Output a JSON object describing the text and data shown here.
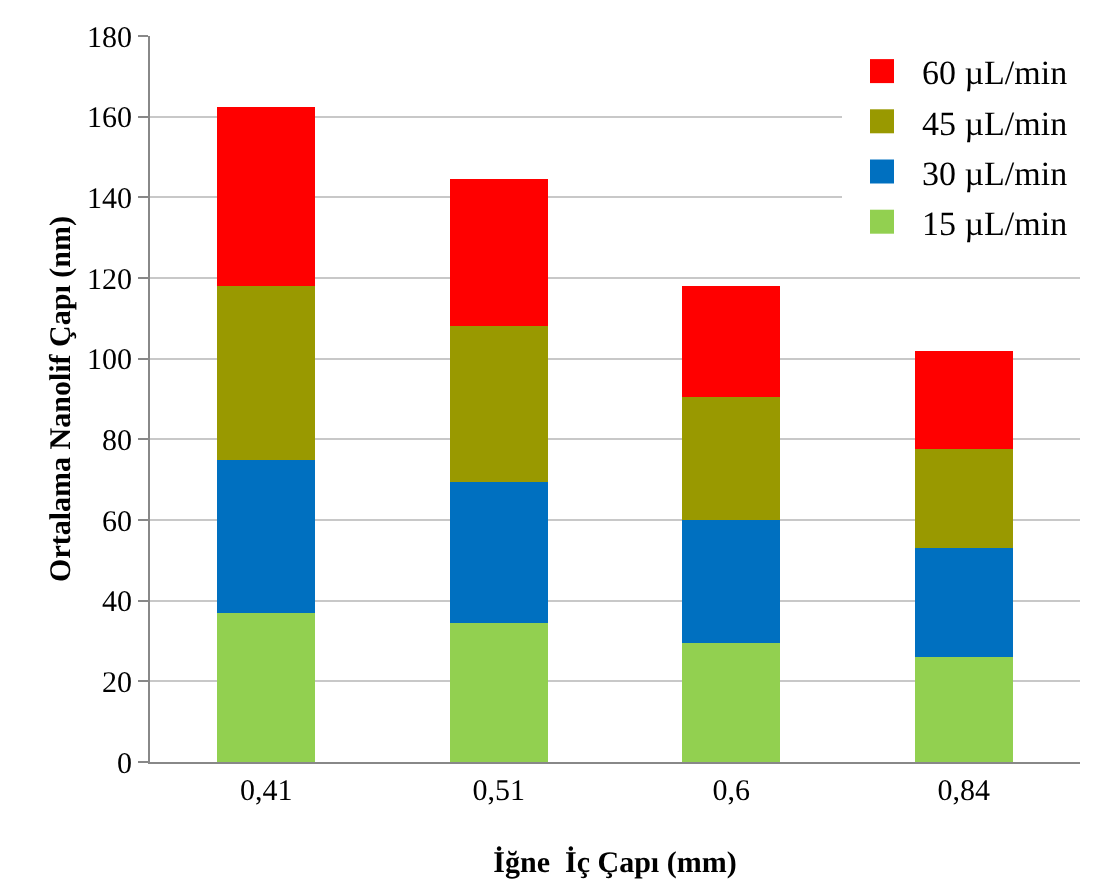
{
  "chart_data": {
    "type": "bar",
    "stacked": true,
    "xlabel": "İğne  İç Çapı (mm)",
    "ylabel": "Ortalama Nanolif Çapı (nm)",
    "categories": [
      "0,41",
      "0,51",
      "0,6",
      "0,84"
    ],
    "series": [
      {
        "name": "15 µL/min",
        "color": "#92d050",
        "values": [
          37,
          34.5,
          29.5,
          26
        ]
      },
      {
        "name": "30 µL/min",
        "color": "#0070c0",
        "values": [
          38,
          35,
          30.5,
          27
        ]
      },
      {
        "name": "45 µL/min",
        "color": "#999900",
        "values": [
          43,
          38.5,
          30.5,
          24.5
        ]
      },
      {
        "name": "60 µL/min",
        "color": "#ff0000",
        "values": [
          44.5,
          36.5,
          27.5,
          24.5
        ]
      }
    ],
    "ylim": [
      0,
      180
    ],
    "yticks": [
      0,
      20,
      40,
      60,
      80,
      100,
      120,
      140,
      160,
      180
    ],
    "grid": "y",
    "legend": "top right"
  }
}
